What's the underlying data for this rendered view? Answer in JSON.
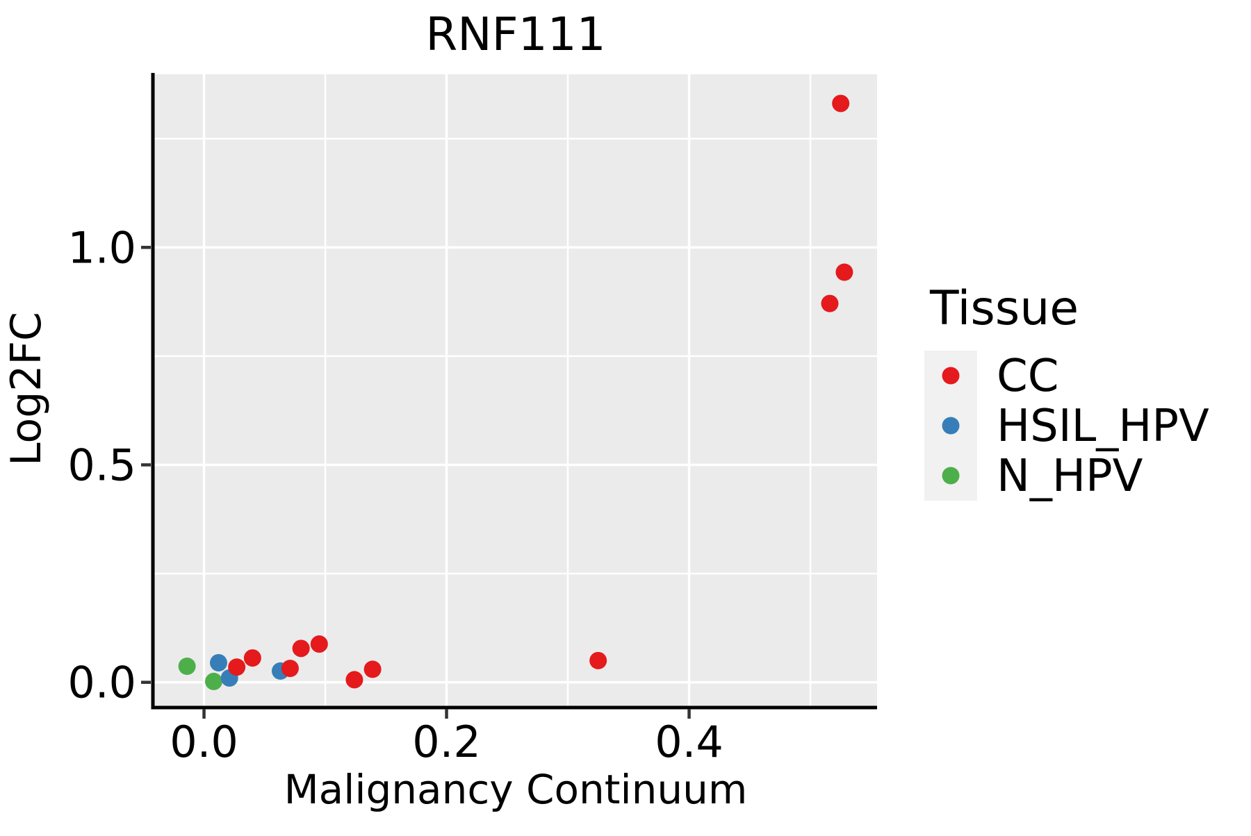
{
  "chart_data": {
    "type": "scatter",
    "title": "RNF111",
    "xlabel": "Malignancy Continuum",
    "ylabel": "Log2FC",
    "legend_title": "Tissue",
    "legend_position": "right",
    "grid": true,
    "xlim": [
      -0.041,
      0.555
    ],
    "ylim": [
      -0.058,
      1.398
    ],
    "x_ticks": [
      0.0,
      0.2,
      0.4
    ],
    "x_tick_labels": [
      "0.0",
      "0.2",
      "0.4"
    ],
    "y_ticks": [
      0.0,
      0.5,
      1.0
    ],
    "y_tick_labels": [
      "0.0",
      "0.5",
      "1.0"
    ],
    "x_minor_ticks": [
      0.1,
      0.3,
      0.5
    ],
    "y_minor_ticks": [
      0.25,
      0.75,
      1.25
    ],
    "series": [
      {
        "name": "CC",
        "color": "#E41A1C",
        "points": [
          [
            0.525,
            1.331
          ],
          [
            0.528,
            0.943
          ],
          [
            0.516,
            0.871
          ],
          [
            0.325,
            0.05
          ],
          [
            0.139,
            0.03
          ],
          [
            0.124,
            0.006
          ],
          [
            0.095,
            0.088
          ],
          [
            0.08,
            0.078
          ],
          [
            0.071,
            0.032
          ],
          [
            0.04,
            0.056
          ],
          [
            0.027,
            0.035
          ]
        ]
      },
      {
        "name": "HSIL_HPV",
        "color": "#377EB8",
        "points": [
          [
            0.012,
            0.045
          ],
          [
            0.021,
            0.01
          ],
          [
            0.063,
            0.026
          ]
        ]
      },
      {
        "name": "N_HPV",
        "color": "#4DAF4A",
        "points": [
          [
            -0.014,
            0.037
          ],
          [
            0.008,
            0.002
          ]
        ]
      }
    ],
    "style": {
      "panel_bg": "#EBEBEB",
      "grid_color": "#FFFFFF",
      "legend_key_bg": "#F1F1F1",
      "axis_line_color": "#000000",
      "tick_color": "#333333",
      "text_color": "#000000"
    }
  }
}
